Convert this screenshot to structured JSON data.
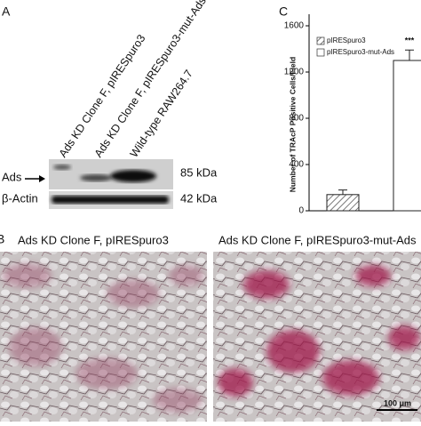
{
  "panels": {
    "a": "A",
    "b": "B",
    "c": "C"
  },
  "blot": {
    "lanes": [
      "Ads KD Clone F, pIRESpuro3",
      "Ads KD Clone F, pIRESpuro3-mut-Ads",
      "Wild-type RAW264.7"
    ],
    "rows": [
      {
        "label": "Ads",
        "size": "85 kDa"
      },
      {
        "label": "β-Actin",
        "size": "42 kDa"
      }
    ]
  },
  "images": [
    {
      "caption": "Ads KD Clone F, pIRESpuro3"
    },
    {
      "caption": "Ads KD Clone F, pIRESpuro3-mut-Ads",
      "scale_bar": "100 μm"
    }
  ],
  "chart_data": {
    "type": "bar",
    "y_label": "Number of TRAcP Positive Cells/Field",
    "ylim": [
      0,
      1700
    ],
    "yticks": [
      0,
      400,
      800,
      1200,
      1600
    ],
    "series": [
      {
        "name": "pIRESpuro3",
        "color": "#ffffff",
        "pattern": "hatch",
        "values": [
          140
        ],
        "errors": [
          40
        ]
      },
      {
        "name": "pIRESpuro3-mut-Ads",
        "color": "#ffffff",
        "pattern": "none",
        "values": [
          1300
        ],
        "errors": [
          90
        ]
      }
    ],
    "annotation": "***"
  }
}
